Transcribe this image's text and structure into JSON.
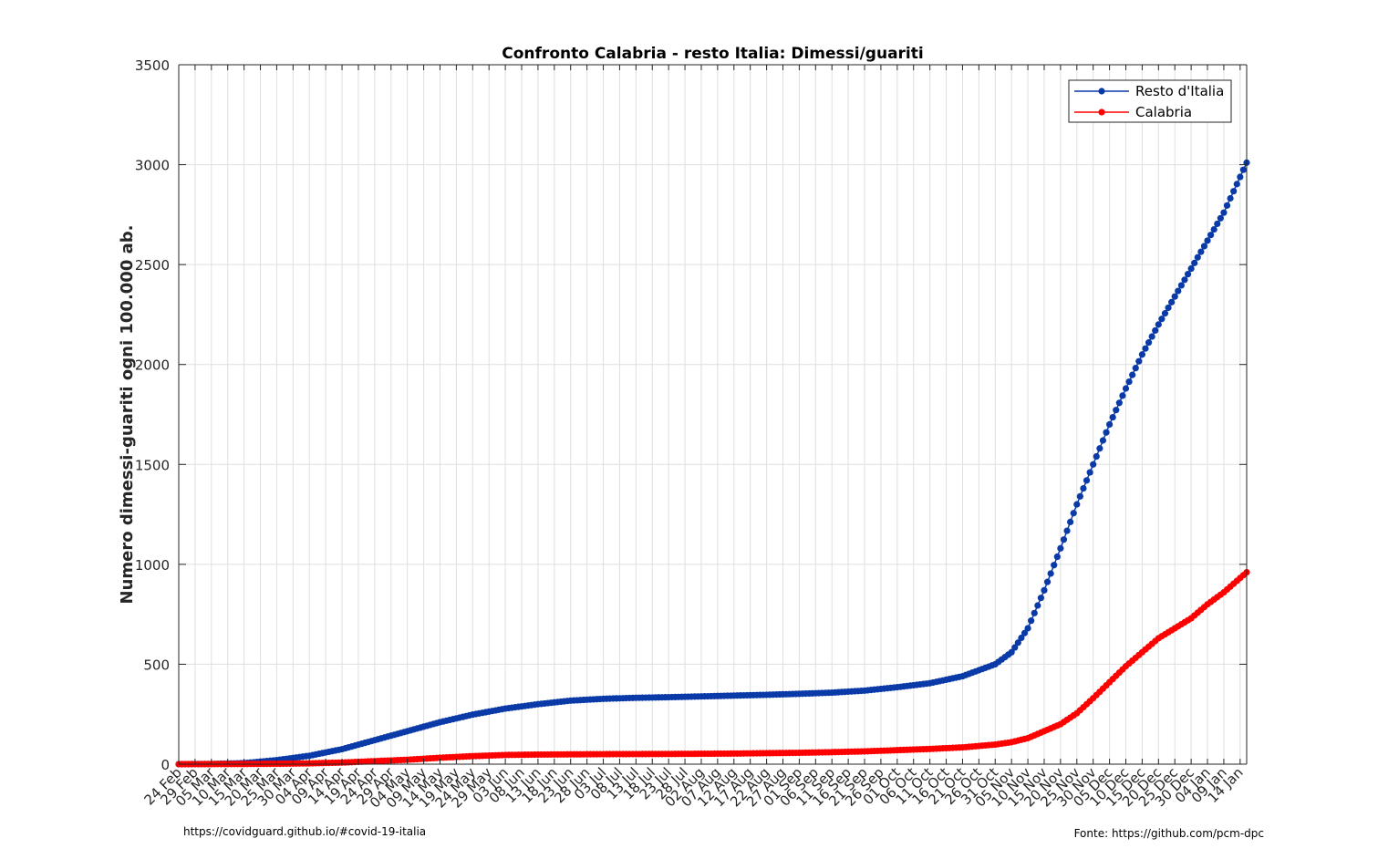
{
  "chart_data": {
    "type": "line",
    "title": "Confronto Calabria - resto Italia: Dimessi/guariti",
    "xlabel": "",
    "ylabel": "Numero dimessi-guariti ogni 100.000 ab.",
    "ylim": [
      0,
      3500
    ],
    "yticks": [
      0,
      500,
      1000,
      1500,
      2000,
      2500,
      3000,
      3500
    ],
    "x_start": "2020-02-24",
    "x_end": "2021-01-16",
    "xtick_labels": [
      "24 Feb",
      "29 Feb",
      "05 Mar",
      "10 Mar",
      "15 Mar",
      "20 Mar",
      "25 Mar",
      "30 Mar",
      "04 Apr",
      "09 Apr",
      "14 Apr",
      "19 Apr",
      "24 Apr",
      "29 Apr",
      "04 May",
      "09 May",
      "14 May",
      "19 May",
      "24 May",
      "29 May",
      "03 Jun",
      "08 Jun",
      "13 Jun",
      "18 Jun",
      "23 Jun",
      "28 Jun",
      "03 Jul",
      "08 Jul",
      "13 Jul",
      "18 Jul",
      "23 Jul",
      "28 Jul",
      "02 Aug",
      "07 Aug",
      "12 Aug",
      "17 Aug",
      "22 Aug",
      "27 Aug",
      "01 Sep",
      "06 Sep",
      "11 Sep",
      "16 Sep",
      "21 Sep",
      "26 Sep",
      "01 Oct",
      "06 Oct",
      "11 Oct",
      "16 Oct",
      "21 Oct",
      "26 Oct",
      "31 Oct",
      "05 Nov",
      "10 Nov",
      "15 Nov",
      "20 Nov",
      "25 Nov",
      "30 Nov",
      "05 Dec",
      "10 Dec",
      "15 Dec",
      "20 Dec",
      "25 Dec",
      "30 Dec",
      "04 Jan",
      "09 Jan",
      "14 Jan"
    ],
    "grid": true,
    "legend_position": "top-right",
    "series": [
      {
        "name": "Resto d'Italia",
        "color": "#0a3aa8",
        "points": [
          [
            "2020-02-24",
            0
          ],
          [
            "2020-03-05",
            1
          ],
          [
            "2020-03-15",
            5
          ],
          [
            "2020-03-25",
            20
          ],
          [
            "2020-04-04",
            42
          ],
          [
            "2020-04-14",
            75
          ],
          [
            "2020-04-24",
            120
          ],
          [
            "2020-05-04",
            165
          ],
          [
            "2020-05-14",
            210
          ],
          [
            "2020-05-24",
            248
          ],
          [
            "2020-06-03",
            278
          ],
          [
            "2020-06-13",
            300
          ],
          [
            "2020-06-23",
            318
          ],
          [
            "2020-07-03",
            327
          ],
          [
            "2020-07-13",
            332
          ],
          [
            "2020-07-23",
            335
          ],
          [
            "2020-08-02",
            339
          ],
          [
            "2020-08-12",
            343
          ],
          [
            "2020-08-22",
            347
          ],
          [
            "2020-09-01",
            352
          ],
          [
            "2020-09-11",
            358
          ],
          [
            "2020-09-21",
            368
          ],
          [
            "2020-10-01",
            385
          ],
          [
            "2020-10-11",
            405
          ],
          [
            "2020-10-21",
            440
          ],
          [
            "2020-10-31",
            500
          ],
          [
            "2020-11-05",
            560
          ],
          [
            "2020-11-10",
            680
          ],
          [
            "2020-11-15",
            870
          ],
          [
            "2020-11-20",
            1080
          ],
          [
            "2020-11-25",
            1300
          ],
          [
            "2020-11-30",
            1500
          ],
          [
            "2020-12-05",
            1700
          ],
          [
            "2020-12-10",
            1880
          ],
          [
            "2020-12-15",
            2050
          ],
          [
            "2020-12-20",
            2200
          ],
          [
            "2020-12-25",
            2340
          ],
          [
            "2020-12-30",
            2480
          ],
          [
            "2021-01-04",
            2620
          ],
          [
            "2021-01-09",
            2760
          ],
          [
            "2021-01-16",
            3010
          ]
        ]
      },
      {
        "name": "Calabria",
        "color": "#ff0000",
        "points": [
          [
            "2020-02-24",
            0
          ],
          [
            "2020-03-15",
            1
          ],
          [
            "2020-03-25",
            2
          ],
          [
            "2020-04-04",
            4
          ],
          [
            "2020-04-14",
            8
          ],
          [
            "2020-04-24",
            15
          ],
          [
            "2020-05-04",
            22
          ],
          [
            "2020-05-14",
            32
          ],
          [
            "2020-05-24",
            40
          ],
          [
            "2020-06-03",
            46
          ],
          [
            "2020-06-13",
            48
          ],
          [
            "2020-07-03",
            50
          ],
          [
            "2020-07-23",
            51
          ],
          [
            "2020-08-12",
            53
          ],
          [
            "2020-08-22",
            55
          ],
          [
            "2020-09-01",
            57
          ],
          [
            "2020-09-11",
            60
          ],
          [
            "2020-09-21",
            64
          ],
          [
            "2020-10-01",
            70
          ],
          [
            "2020-10-11",
            76
          ],
          [
            "2020-10-21",
            84
          ],
          [
            "2020-10-31",
            98
          ],
          [
            "2020-11-05",
            110
          ],
          [
            "2020-11-10",
            130
          ],
          [
            "2020-11-15",
            165
          ],
          [
            "2020-11-20",
            200
          ],
          [
            "2020-11-25",
            255
          ],
          [
            "2020-11-30",
            330
          ],
          [
            "2020-12-05",
            410
          ],
          [
            "2020-12-10",
            490
          ],
          [
            "2020-12-15",
            560
          ],
          [
            "2020-12-20",
            630
          ],
          [
            "2020-12-25",
            680
          ],
          [
            "2020-12-30",
            730
          ],
          [
            "2021-01-04",
            800
          ],
          [
            "2021-01-09",
            860
          ],
          [
            "2021-01-16",
            960
          ]
        ]
      }
    ]
  },
  "footer": {
    "left": "https://covidguard.github.io/#covid-19-italia",
    "right": "Fonte: https://github.com/pcm-dpc"
  }
}
